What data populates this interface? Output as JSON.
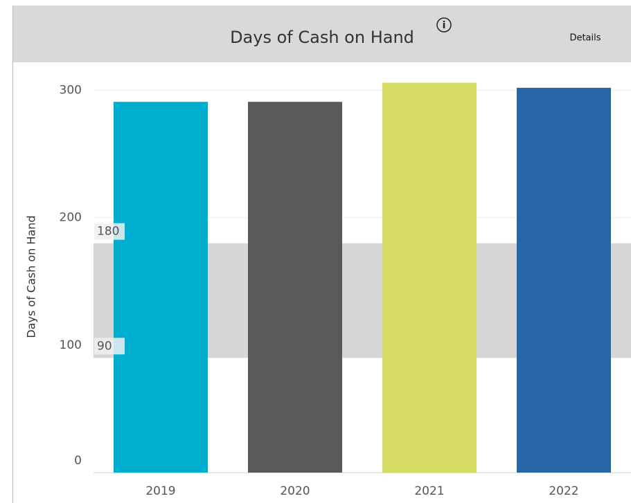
{
  "chart_data": {
    "type": "bar",
    "title": "Days of Cash on Hand",
    "header_link": "Details",
    "ylabel": "Days of Cash on Hand",
    "categories": [
      "2019",
      "2020",
      "2021",
      "2022"
    ],
    "series": [
      {
        "name": "Days of Cash on Hand",
        "values": [
          291,
          291,
          306,
          302
        ],
        "colors": [
          "#00aecf",
          "#595959",
          "#d5dc63",
          "#2766a6"
        ]
      }
    ],
    "reference_band": [
      90,
      180
    ],
    "ylim": [
      0,
      315
    ],
    "yticks": [
      0,
      100,
      200,
      300
    ],
    "grid": true
  }
}
